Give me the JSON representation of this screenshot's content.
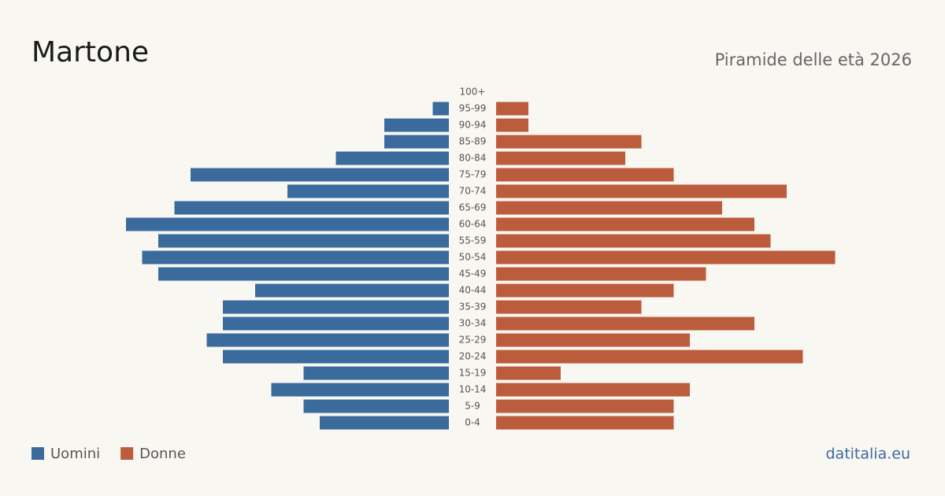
{
  "chart_data": {
    "type": "pyramid",
    "title": "Martone",
    "subtitle": "Piramide delle età 2026",
    "source": "datitalia.eu",
    "categories": [
      "100+",
      "95-99",
      "90-94",
      "85-89",
      "80-84",
      "75-79",
      "70-74",
      "65-69",
      "60-64",
      "55-59",
      "50-54",
      "45-49",
      "40-44",
      "35-39",
      "30-34",
      "25-29",
      "20-24",
      "15-19",
      "10-14",
      "5-9",
      "0-4"
    ],
    "series": [
      {
        "name": "Uomini",
        "color": "#3b6a9c",
        "values": [
          0,
          1,
          4,
          4,
          7,
          16,
          10,
          17,
          20,
          18,
          19,
          18,
          12,
          14,
          14,
          15,
          14,
          9,
          11,
          9,
          8
        ]
      },
      {
        "name": "Donne",
        "color": "#bb5d3d",
        "values": [
          0,
          2,
          2,
          9,
          8,
          11,
          18,
          14,
          16,
          17,
          21,
          13,
          11,
          9,
          16,
          12,
          19,
          4,
          12,
          11,
          11
        ]
      }
    ]
  }
}
